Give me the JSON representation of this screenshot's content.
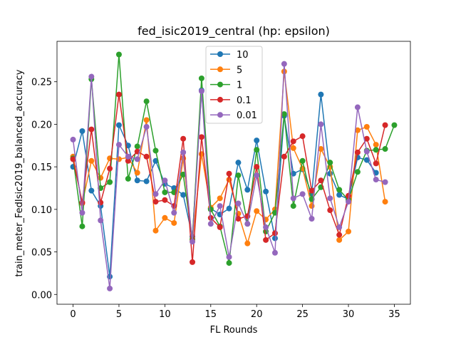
{
  "chart_data": {
    "type": "line",
    "title": "fed_isic2019_central (hp: epsilon)",
    "xlabel": "FL Rounds",
    "ylabel": "train_meter_FedIsic2019_balanced_accuracy",
    "xlim": [
      -1.75,
      36.75
    ],
    "ylim": [
      -0.0115,
      0.2975
    ],
    "xticks": [
      0,
      5,
      10,
      15,
      20,
      25,
      30,
      35
    ],
    "yticks": [
      0.0,
      0.05,
      0.1,
      0.15,
      0.2,
      0.25
    ],
    "ytick_labels": [
      "0.00",
      "0.05",
      "0.10",
      "0.15",
      "0.20",
      "0.25"
    ],
    "grid": false,
    "legend_position": "top-center",
    "series": [
      {
        "name": "10",
        "color": "#1f77b4",
        "x": [
          0,
          1,
          2,
          3,
          4,
          5,
          6,
          7,
          8,
          9,
          10,
          11,
          12,
          13,
          14,
          15,
          16,
          17,
          18,
          19,
          20,
          21,
          22,
          23,
          24,
          25,
          26,
          27,
          28,
          29,
          30,
          31,
          32,
          33
        ],
        "y": [
          0.15,
          0.192,
          0.122,
          0.104,
          0.021,
          0.199,
          0.175,
          0.134,
          0.133,
          0.157,
          0.13,
          0.125,
          0.117,
          0.068,
          0.24,
          0.101,
          0.094,
          0.101,
          0.155,
          0.123,
          0.181,
          0.121,
          0.066,
          0.21,
          0.142,
          0.147,
          0.118,
          0.235,
          0.142,
          0.117,
          0.112,
          0.161,
          0.158,
          0.143
        ]
      },
      {
        "name": "5",
        "color": "#ff7f0e",
        "x": [
          0,
          1,
          2,
          3,
          4,
          5,
          6,
          7,
          8,
          9,
          10,
          11,
          12,
          13,
          14,
          15,
          16,
          17,
          18,
          19,
          20,
          21,
          22,
          23,
          24,
          25,
          26,
          27,
          28,
          29,
          30,
          31,
          32,
          33,
          34
        ],
        "y": [
          0.162,
          0.107,
          0.157,
          0.137,
          0.16,
          0.159,
          0.161,
          0.143,
          0.205,
          0.075,
          0.09,
          0.084,
          0.16,
          0.063,
          0.165,
          0.102,
          0.113,
          0.135,
          0.095,
          0.06,
          0.098,
          0.088,
          0.1,
          0.262,
          0.172,
          0.148,
          0.104,
          0.171,
          0.15,
          0.064,
          0.074,
          0.193,
          0.197,
          0.176,
          0.109
        ]
      },
      {
        "name": "1",
        "color": "#2ca02c",
        "x": [
          0,
          1,
          2,
          3,
          4,
          5,
          6,
          7,
          8,
          9,
          10,
          11,
          12,
          13,
          14,
          15,
          16,
          17,
          18,
          19,
          20,
          21,
          22,
          23,
          24,
          25,
          26,
          27,
          28,
          29,
          30,
          31,
          32,
          33,
          34,
          35
        ],
        "y": [
          0.16,
          0.08,
          0.253,
          0.125,
          0.132,
          0.282,
          0.136,
          0.174,
          0.227,
          0.169,
          0.12,
          0.12,
          0.141,
          0.065,
          0.254,
          0.1,
          0.08,
          0.037,
          0.14,
          0.083,
          0.17,
          0.074,
          0.096,
          0.212,
          0.104,
          0.157,
          0.112,
          0.126,
          0.155,
          0.123,
          0.111,
          0.144,
          0.169,
          0.17,
          0.171,
          0.199
        ]
      },
      {
        "name": "0.1",
        "color": "#d62728",
        "x": [
          0,
          1,
          2,
          3,
          4,
          5,
          6,
          7,
          8,
          9,
          10,
          11,
          12,
          13,
          14,
          15,
          16,
          17,
          18,
          19,
          20,
          21,
          22,
          23,
          24,
          25,
          26,
          27,
          28,
          29,
          30,
          31,
          32,
          33,
          34
        ],
        "y": [
          0.159,
          0.108,
          0.194,
          0.108,
          0.148,
          0.235,
          0.157,
          0.168,
          0.162,
          0.109,
          0.111,
          0.104,
          0.183,
          0.038,
          0.185,
          0.09,
          0.079,
          0.142,
          0.089,
          0.092,
          0.15,
          0.064,
          0.072,
          0.162,
          0.18,
          0.186,
          0.122,
          0.134,
          0.099,
          0.07,
          0.116,
          0.167,
          0.183,
          0.154,
          0.199
        ]
      },
      {
        "name": "0.01",
        "color": "#9467bd",
        "x": [
          0,
          1,
          2,
          3,
          4,
          5,
          6,
          7,
          8,
          9,
          10,
          11,
          12,
          13,
          14,
          15,
          16,
          17,
          18,
          19,
          20,
          21,
          22,
          23,
          24,
          25,
          26,
          27,
          28,
          29,
          30,
          31,
          32,
          33,
          34
        ],
        "y": [
          0.182,
          0.096,
          0.256,
          0.087,
          0.007,
          0.176,
          0.162,
          0.159,
          0.197,
          0.118,
          0.134,
          0.096,
          0.167,
          0.062,
          0.239,
          0.083,
          0.104,
          0.044,
          0.107,
          0.083,
          0.14,
          0.079,
          0.049,
          0.271,
          0.113,
          0.118,
          0.089,
          0.2,
          0.113,
          0.079,
          0.109,
          0.22,
          0.168,
          0.135,
          0.132
        ]
      }
    ]
  }
}
